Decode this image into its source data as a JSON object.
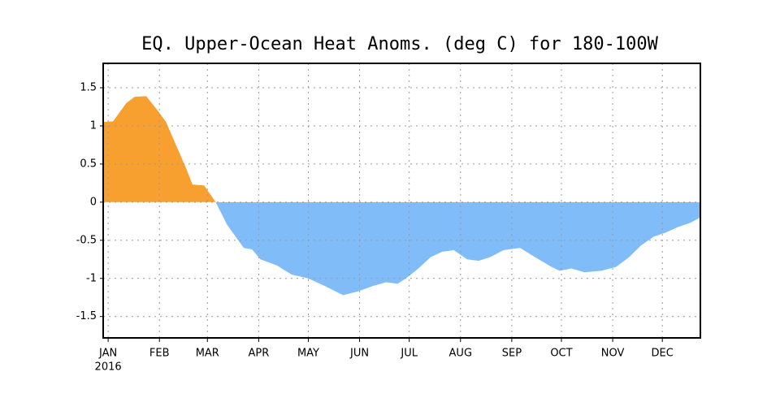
{
  "chart_data": {
    "type": "area",
    "title": "EQ. Upper-Ocean Heat Anoms. (deg C) for 180-100W",
    "year_label": "2016",
    "x": [
      -2,
      4,
      12,
      17,
      24,
      31,
      36,
      41,
      48,
      52,
      59,
      66,
      73,
      83,
      88,
      93,
      103,
      112,
      122,
      132,
      143,
      152,
      161,
      169,
      176,
      181,
      188,
      196,
      203,
      210,
      218,
      225,
      232,
      240,
      250,
      259,
      269,
      274,
      281,
      289,
      299,
      308,
      316,
      323,
      331,
      338,
      345,
      353,
      359
    ],
    "values": [
      1.05,
      1.06,
      1.3,
      1.38,
      1.39,
      1.2,
      1.05,
      0.8,
      0.45,
      0.23,
      0.22,
      0,
      -0.3,
      -0.6,
      -0.62,
      -0.75,
      -0.83,
      -0.95,
      -1.0,
      -1.1,
      -1.22,
      -1.17,
      -1.1,
      -1.05,
      -1.07,
      -1.0,
      -0.88,
      -0.72,
      -0.65,
      -0.63,
      -0.75,
      -0.77,
      -0.72,
      -0.63,
      -0.6,
      -0.72,
      -0.85,
      -0.9,
      -0.87,
      -0.92,
      -0.9,
      -0.85,
      -0.72,
      -0.57,
      -0.45,
      -0.4,
      -0.33,
      -0.27,
      -0.2
    ],
    "positive_color": "#f7a030",
    "negative_color": "#80bcf7",
    "xlim": [
      -2,
      359
    ],
    "xticks": [
      {
        "value": 1,
        "label": "JAN"
      },
      {
        "value": 32,
        "label": "FEB"
      },
      {
        "value": 61,
        "label": "MAR"
      },
      {
        "value": 92,
        "label": "APR"
      },
      {
        "value": 122,
        "label": "MAY"
      },
      {
        "value": 153,
        "label": "JUN"
      },
      {
        "value": 183,
        "label": "JUL"
      },
      {
        "value": 214,
        "label": "AUG"
      },
      {
        "value": 245,
        "label": "SEP"
      },
      {
        "value": 275,
        "label": "OCT"
      },
      {
        "value": 306,
        "label": "NOV"
      },
      {
        "value": 336,
        "label": "DEC"
      }
    ],
    "ylim": [
      -1.78,
      1.82
    ],
    "yticks": [
      -1.5,
      -1,
      -0.5,
      0,
      0.5,
      1,
      1.5
    ],
    "grid": true
  }
}
